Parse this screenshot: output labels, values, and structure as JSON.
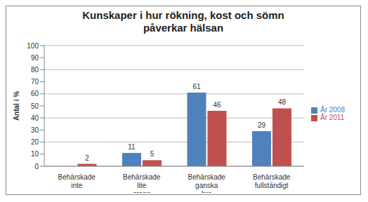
{
  "chart_data": {
    "type": "bar",
    "title": "Kunskaper i hur rökning, kost och sömn påverkar hälsan",
    "y_label": "Antal i %",
    "categories": [
      "Behärskade inte",
      "Behärskade lite grann",
      "Behärskade ganska bra",
      "Behärskade fullständigt"
    ],
    "series": [
      {
        "name": "År 2008",
        "color": "#4f81bd",
        "values": [
          0,
          11,
          61,
          29
        ]
      },
      {
        "name": "År 2011",
        "color": "#c0504d",
        "values": [
          2,
          5,
          46,
          48
        ]
      }
    ],
    "ylim": [
      0,
      100
    ],
    "yticks": [
      0,
      10,
      20,
      30,
      40,
      50,
      60,
      70,
      80,
      90,
      100
    ],
    "grid": true,
    "legend": "right",
    "data_labels": true
  }
}
